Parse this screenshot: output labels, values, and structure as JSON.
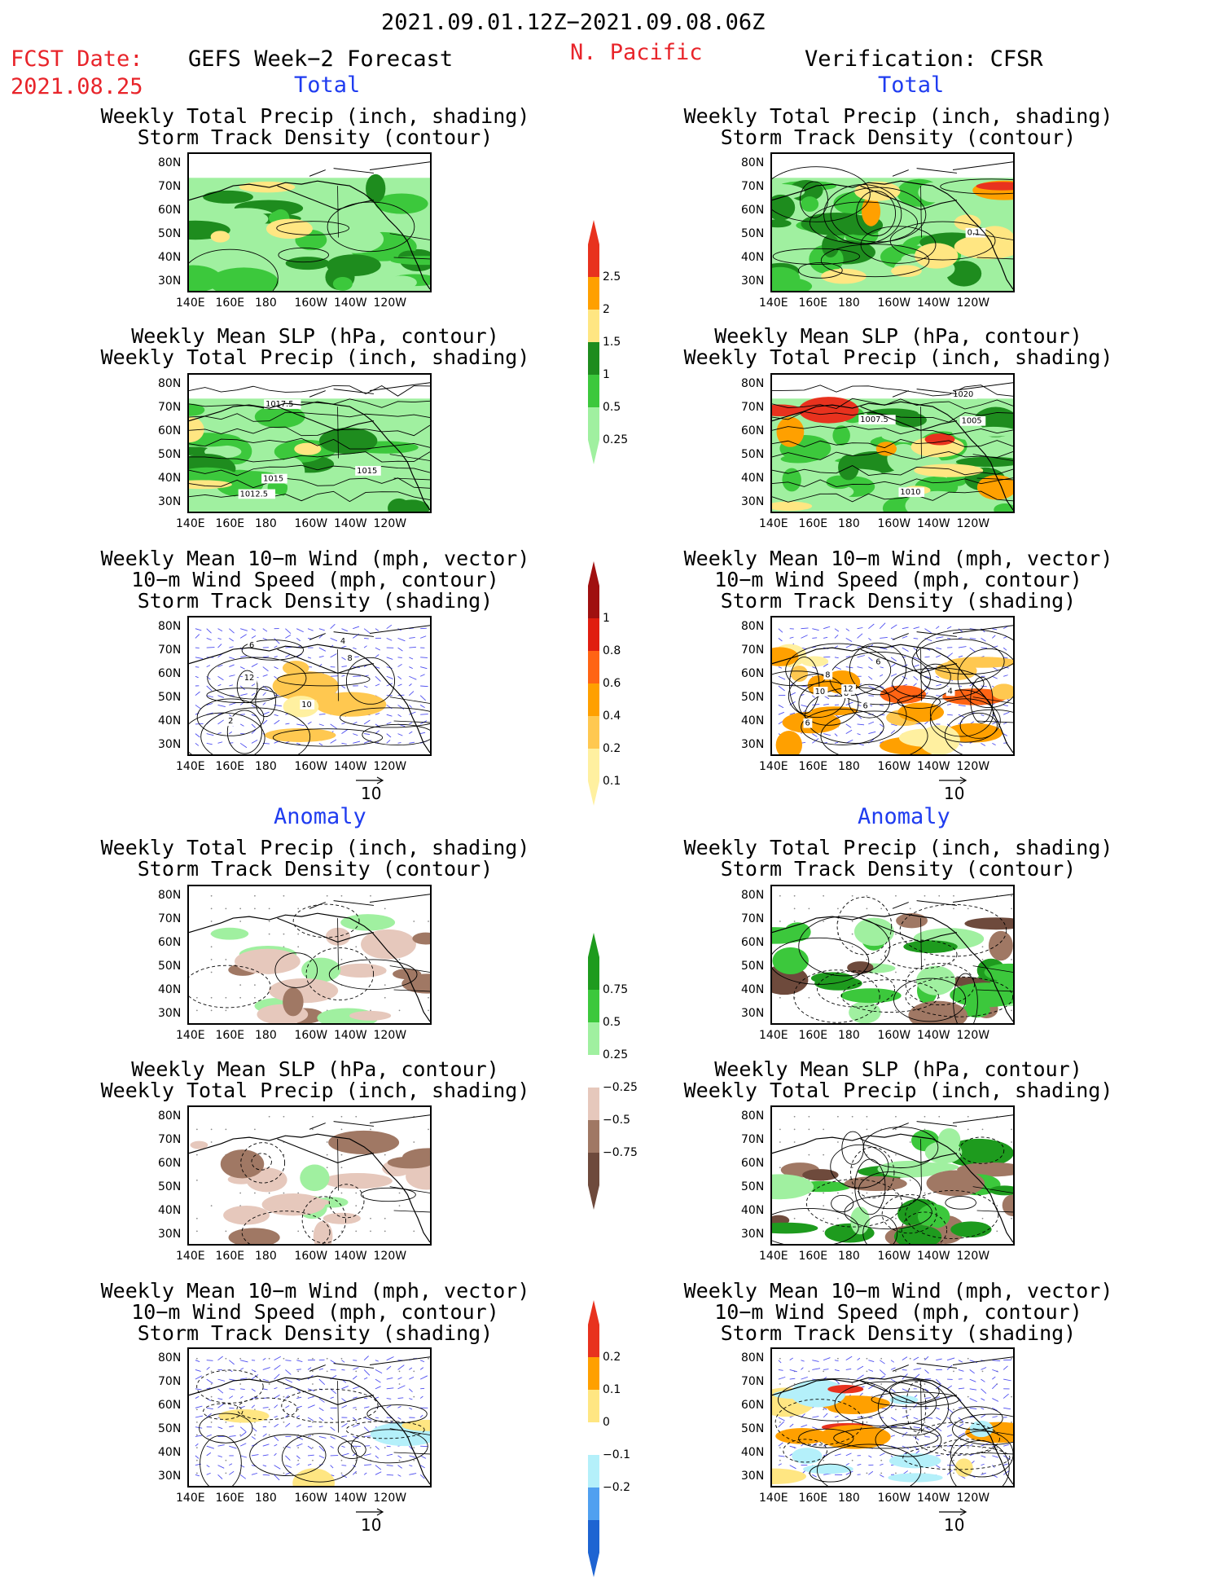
{
  "header": {
    "date_range": "2021.09.01.12Z−2021.09.08.06Z",
    "fcst_label": "FCST Date:",
    "fcst_date": "2021.08.25",
    "forecast_title": "GEFS Week−2 Forecast",
    "region": "N. Pacific",
    "verification_title": "Verification: CFSR"
  },
  "sections": {
    "total": "Total",
    "anomaly": "Anomaly"
  },
  "panel_titles": {
    "precip_storm": [
      "Weekly Total Precip (inch, shading)",
      "Storm Track Density (contour)"
    ],
    "slp_precip": [
      "Weekly Mean SLP (hPa, contour)",
      "Weekly Total Precip (inch, shading)"
    ],
    "wind_storm": [
      "Weekly Mean 10−m Wind (mph, vector)",
      "10−m Wind Speed (mph, contour)",
      "Storm Track Density (shading)"
    ]
  },
  "axes": {
    "lat_labels": [
      "80N",
      "70N",
      "60N",
      "50N",
      "40N",
      "30N"
    ],
    "lon_labels": [
      "140E",
      "160E",
      "180",
      "160W",
      "140W",
      "120W"
    ]
  },
  "vector_ref": "10",
  "contour_labels": {
    "fc_slp": [
      "1017.5",
      "1015",
      "1015",
      "1012.5"
    ],
    "vf_slp": [
      "1010",
      "1007.5",
      "1005",
      "1020"
    ],
    "vf_precip": [
      "0.1"
    ],
    "fc_wind": [
      "2",
      "4",
      "6",
      "8",
      "10",
      "12"
    ],
    "vf_wind": [
      "6",
      "8",
      "4",
      "6",
      "10",
      "12",
      "8",
      "6"
    ]
  },
  "colorbars": {
    "precip_total": {
      "labels": [
        "2.5",
        "2",
        "1.5",
        "1",
        "0.5",
        "0.25"
      ],
      "colors": [
        "#e8321e",
        "#ffa000",
        "#ffe682",
        "#1e8c1e",
        "#3cc83c",
        "#a0f0a0"
      ]
    },
    "storm_total": {
      "labels": [
        "1",
        "0.8",
        "0.6",
        "0.4",
        "0.2",
        "0.1"
      ],
      "colors": [
        "#a01010",
        "#e01e10",
        "#ff6414",
        "#ffa000",
        "#ffc850",
        "#fff0a0"
      ]
    },
    "precip_anom": {
      "labels": [
        "0.75",
        "0.5",
        "0.25",
        "−0.25",
        "−0.5",
        "−0.75"
      ],
      "colors": [
        "#1e9b1e",
        "#3cc83c",
        "#a0f0a0",
        "#ffffff",
        "#e6c8bc",
        "#a07864",
        "#6e4a3c"
      ]
    },
    "storm_anom": {
      "labels": [
        "0.2",
        "0.1",
        "0",
        "−0.1",
        "−0.2"
      ],
      "colors": [
        "#e8321e",
        "#ffa000",
        "#ffe682",
        "#ffffff",
        "#b4f0fa",
        "#50a0f0",
        "#1e64d2"
      ]
    }
  }
}
